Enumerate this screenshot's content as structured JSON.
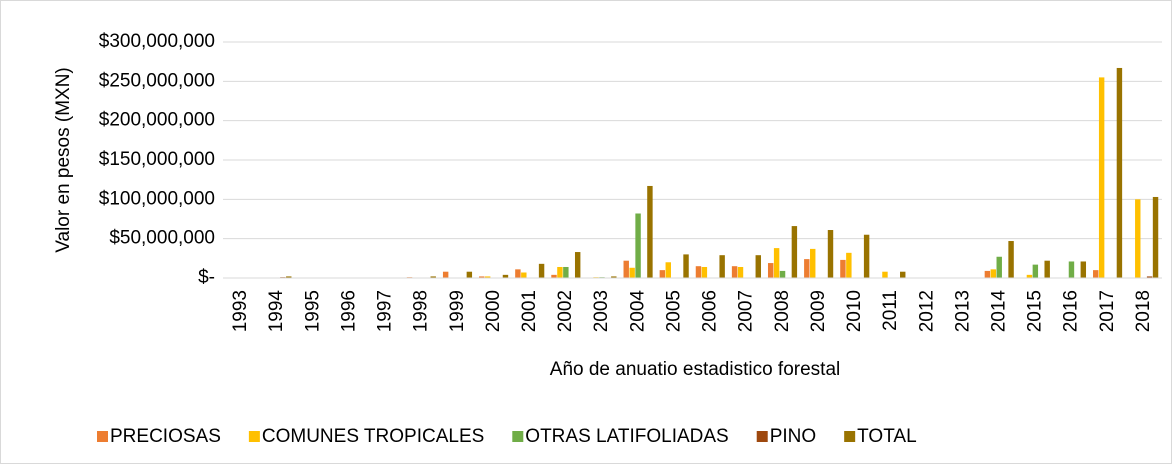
{
  "chart_data": {
    "type": "bar",
    "y_label": "Valor en pesos (MXN)",
    "x_label": "Año de anuatio estadistico forestal",
    "categories": [
      "1993",
      "1994",
      "1995",
      "1996",
      "1997",
      "1998",
      "1999",
      "2000",
      "2001",
      "2002",
      "2003",
      "2004",
      "2005",
      "2006",
      "2007",
      "2008",
      "2009",
      "2010",
      "2011",
      "2012",
      "2013",
      "2014",
      "2015",
      "2016",
      "2017",
      "2018"
    ],
    "series": [
      {
        "name": "PRECIOSAS",
        "color": "#ed7d31",
        "values": [
          0,
          0,
          0,
          0,
          0,
          1000000,
          8000000,
          2000000,
          11000000,
          4000000,
          0,
          22000000,
          10000000,
          15000000,
          15000000,
          19000000,
          24000000,
          23000000,
          0,
          0,
          0,
          9000000,
          0,
          0,
          10000000,
          0
        ]
      },
      {
        "name": "COMUNES TROPICALES",
        "color": "#ffc000",
        "values": [
          0,
          0,
          0,
          0,
          0,
          0,
          0,
          2000000,
          7000000,
          14000000,
          1000000,
          13000000,
          20000000,
          14000000,
          14000000,
          38000000,
          37000000,
          32000000,
          8000000,
          0,
          0,
          11000000,
          4000000,
          0,
          255000000,
          100000000
        ]
      },
      {
        "name": "OTRAS LATIFOLIADAS",
        "color": "#70ad47",
        "values": [
          0,
          0,
          0,
          0,
          0,
          0,
          0,
          0,
          0,
          14000000,
          1000000,
          82000000,
          0,
          0,
          0,
          9000000,
          0,
          0,
          0,
          0,
          0,
          27000000,
          17000000,
          21000000,
          0,
          0
        ]
      },
      {
        "name": "PINO",
        "color": "#9e480e",
        "values": [
          0,
          1000000,
          0,
          0,
          0,
          0,
          0,
          0,
          0,
          0,
          0,
          0,
          0,
          0,
          0,
          0,
          0,
          0,
          0,
          0,
          0,
          0,
          0,
          0,
          0,
          2000000
        ]
      },
      {
        "name": "TOTAL",
        "color": "#997300",
        "values": [
          0,
          2000000,
          0,
          0,
          0,
          2000000,
          8000000,
          4000000,
          18000000,
          33000000,
          2000000,
          117000000,
          30000000,
          29000000,
          29000000,
          66000000,
          61000000,
          55000000,
          8000000,
          0,
          0,
          47000000,
          22000000,
          21000000,
          267000000,
          103000000
        ]
      }
    ],
    "ylim": [
      0,
      300000000
    ],
    "yticks": [
      {
        "value": 0,
        "label": "$-"
      },
      {
        "value": 50000000,
        "label": "$50,000,000"
      },
      {
        "value": 100000000,
        "label": "$100,000,000"
      },
      {
        "value": 150000000,
        "label": "$150,000,000"
      },
      {
        "value": 200000000,
        "label": "$200,000,000"
      },
      {
        "value": 250000000,
        "label": "$250,000,000"
      },
      {
        "value": 300000000,
        "label": "$300,000,000"
      }
    ],
    "grid": true,
    "legend": "bottom"
  }
}
